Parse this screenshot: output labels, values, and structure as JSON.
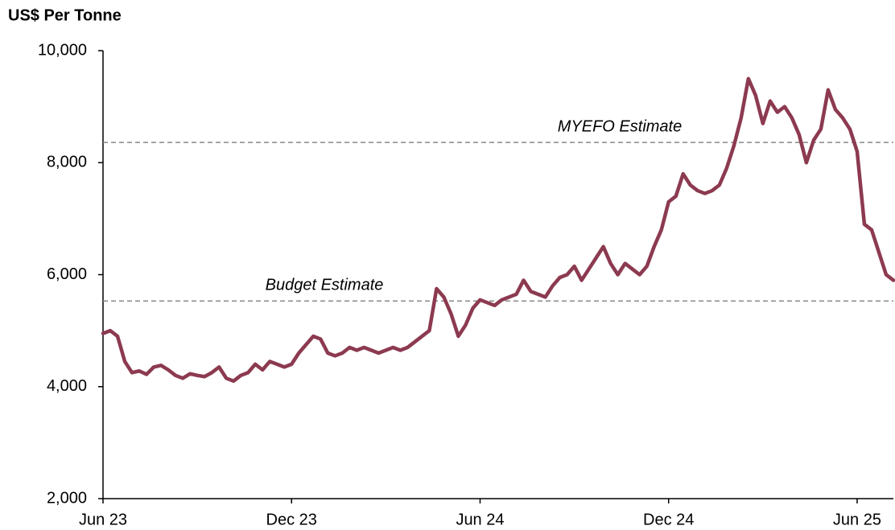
{
  "chart_data": {
    "type": "line",
    "y_axis_title": "US$ Per Tonne",
    "categories": [
      "Jun 23",
      null,
      null,
      null,
      null,
      null,
      null,
      null,
      null,
      null,
      null,
      null,
      null,
      null,
      null,
      null,
      null,
      null,
      null,
      null,
      null,
      null,
      null,
      null,
      null,
      null,
      "Dec 23",
      null,
      null,
      null,
      null,
      null,
      null,
      null,
      null,
      null,
      null,
      null,
      null,
      null,
      null,
      null,
      null,
      null,
      null,
      null,
      null,
      null,
      null,
      null,
      null,
      null,
      "Jun 24",
      null,
      null,
      null,
      null,
      null,
      null,
      null,
      null,
      null,
      null,
      null,
      null,
      null,
      null,
      null,
      null,
      null,
      null,
      null,
      null,
      null,
      null,
      null,
      null,
      null,
      "Dec 24",
      null,
      null,
      null,
      null,
      null,
      null,
      null,
      null,
      null,
      null,
      null,
      null,
      null,
      null,
      null,
      null,
      null,
      null,
      null,
      null,
      null,
      null,
      null,
      null,
      null,
      "Jun 25",
      null,
      null,
      null,
      null,
      null
    ],
    "series": [
      {
        "name": "Price",
        "color": "#8c3a50",
        "values": [
          4950,
          5000,
          4900,
          4450,
          4250,
          4280,
          4220,
          4350,
          4380,
          4300,
          4200,
          4150,
          4230,
          4200,
          4180,
          4250,
          4350,
          4150,
          4100,
          4200,
          4250,
          4400,
          4300,
          4450,
          4400,
          4350,
          4400,
          4600,
          4750,
          4900,
          4850,
          4600,
          4550,
          4600,
          4700,
          4650,
          4700,
          4650,
          4600,
          4650,
          4700,
          4650,
          4700,
          4800,
          4900,
          5000,
          5750,
          5600,
          5300,
          4900,
          5100,
          5400,
          5550,
          5500,
          5450,
          5550,
          5600,
          5650,
          5900,
          5700,
          5650,
          5600,
          5800,
          5950,
          6000,
          6150,
          5900,
          6100,
          6300,
          6500,
          6200,
          6000,
          6200,
          6100,
          6000,
          6150,
          6500,
          6800,
          7300,
          7400,
          7800,
          7600,
          7500,
          7450,
          7500,
          7600,
          7900,
          8300,
          8800,
          9500,
          9200,
          8700,
          9100,
          8900,
          9000,
          8800,
          8500,
          8000,
          8400,
          8600,
          9300,
          8950,
          8800,
          8600,
          8200,
          6900,
          6800,
          6400,
          6000,
          5900
        ]
      }
    ],
    "reference_lines": [
      {
        "label": "MYEFO Estimate",
        "value": 8360
      },
      {
        "label": "Budget Estimate",
        "value": 5530
      }
    ],
    "ylim": [
      2000,
      10000
    ],
    "yticks": [
      {
        "value": 2000,
        "label": "2,000"
      },
      {
        "value": 4000,
        "label": "4,000"
      },
      {
        "value": 6000,
        "label": "6,000"
      },
      {
        "value": 8000,
        "label": "8,000"
      },
      {
        "value": 10000,
        "label": "10,000"
      }
    ],
    "grid": false
  }
}
